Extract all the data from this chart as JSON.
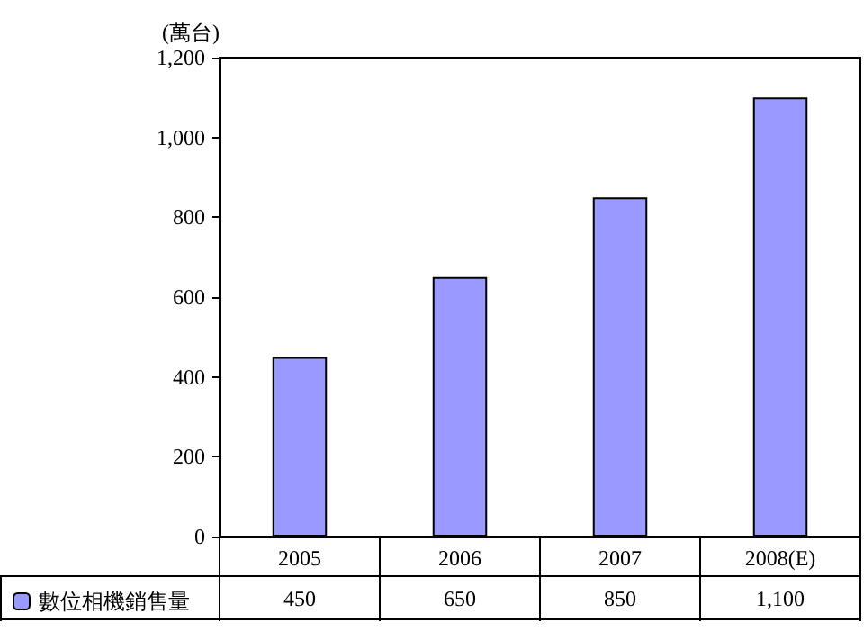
{
  "chart_data": {
    "type": "bar",
    "ylabel": "(萬台)",
    "categories": [
      "2005",
      "2006",
      "2007",
      "2008(E)"
    ],
    "series": [
      {
        "name": "數位相機銷售量",
        "color": "#9999ff",
        "values": [
          450,
          650,
          850,
          1100
        ],
        "value_labels": [
          "450",
          "650",
          "850",
          "1,100"
        ]
      }
    ],
    "ylim": [
      0,
      1200
    ],
    "yticks": [
      0,
      200,
      400,
      600,
      800,
      {
        "value": 1000,
        "label": "1,000"
      },
      {
        "value": 1200,
        "label": "1,200"
      }
    ],
    "grid": false,
    "legend": "bottom"
  }
}
